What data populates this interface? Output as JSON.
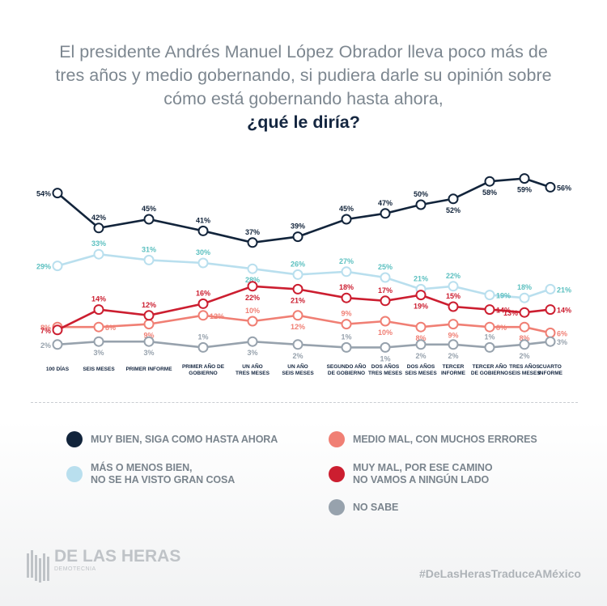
{
  "title": {
    "text": "El presidente Andrés Manuel López Obrador lleva poco más de tres años y medio gobernando, si pudiera darle su opinión sobre cómo está gobernando hasta ahora,",
    "question": "¿qué le diría?"
  },
  "chart_data": {
    "type": "line",
    "title": "El presidente Andrés Manuel López Obrador lleva poco más de tres años y medio gobernando, si pudiera darle su opinión sobre cómo está gobernando hasta ahora, ¿qué le diría?",
    "xlabel": "",
    "ylabel": "",
    "ylim": [
      0,
      60
    ],
    "grid": false,
    "legend": "bottom",
    "categories": [
      "100 DÍAS",
      "SEIS MESES",
      "PRIMER INFORME",
      "PRIMER AÑO DE\nGOBIERNO",
      "UN AÑO\nTRES MESES",
      "UN AÑO\nSEIS MESES",
      "SEGUNDO AÑO\nDE GOBIERNO",
      "DOS AÑOS\nTRES MESES",
      "DOS AÑOS\nSEIS MESES",
      "TERCER\nINFORME",
      "TERCER AÑO\nDE GOBIERNO",
      "TRES AÑOS\nSEIS MESES",
      "CUARTO\nINFORME"
    ],
    "series": [
      {
        "name": "MUY BIEN, SIGA COMO HASTA AHORA",
        "color": "#12243b",
        "values": [
          54,
          42,
          45,
          41,
          37,
          39,
          45,
          47,
          50,
          52,
          58,
          59,
          56
        ]
      },
      {
        "name": "MÁS O MENOS BIEN,\nNO SE HA VISTO GRAN COSA",
        "color": "#b9dfee",
        "label_color": "#5cc0c0",
        "values": [
          29,
          33,
          31,
          30,
          28,
          26,
          27,
          25,
          21,
          22,
          19,
          18,
          21
        ]
      },
      {
        "name": "MEDIO MAL, CON MUCHOS ERRORES",
        "color": "#f07f74",
        "values": [
          8,
          8,
          9,
          12,
          10,
          12,
          9,
          10,
          8,
          9,
          8,
          8,
          6
        ]
      },
      {
        "name": "MUY MAL, POR ESE CAMINO\nNO VAMOS A NINGÚN LADO",
        "color": "#cc1e30",
        "values": [
          7,
          14,
          12,
          16,
          22,
          21,
          18,
          17,
          19,
          15,
          14,
          13,
          14
        ]
      },
      {
        "name": "NO SABE",
        "color": "#97a2ad",
        "values": [
          2,
          3,
          3,
          1,
          3,
          2,
          1,
          1,
          2,
          2,
          1,
          2,
          3
        ]
      }
    ]
  },
  "legend": [
    {
      "label": "MUY BIEN, SIGA COMO HASTA AHORA",
      "color": "#12243b"
    },
    {
      "label": "MÁS O MENOS BIEN,\nNO SE HA VISTO GRAN COSA",
      "color": "#b9dfee"
    },
    {
      "label": "MEDIO MAL, CON MUCHOS ERRORES",
      "color": "#f07f74"
    },
    {
      "label": "MUY MAL, POR ESE CAMINO\nNO VAMOS A NINGÚN LADO",
      "color": "#cc1e30"
    },
    {
      "label": "NO SABE",
      "color": "#97a2ad"
    }
  ],
  "footer": {
    "brand": "DE LAS HERAS",
    "brand_sub": "DEMOTECNIA",
    "hashtag": "#DeLasHerasTraduceAMéxico"
  }
}
